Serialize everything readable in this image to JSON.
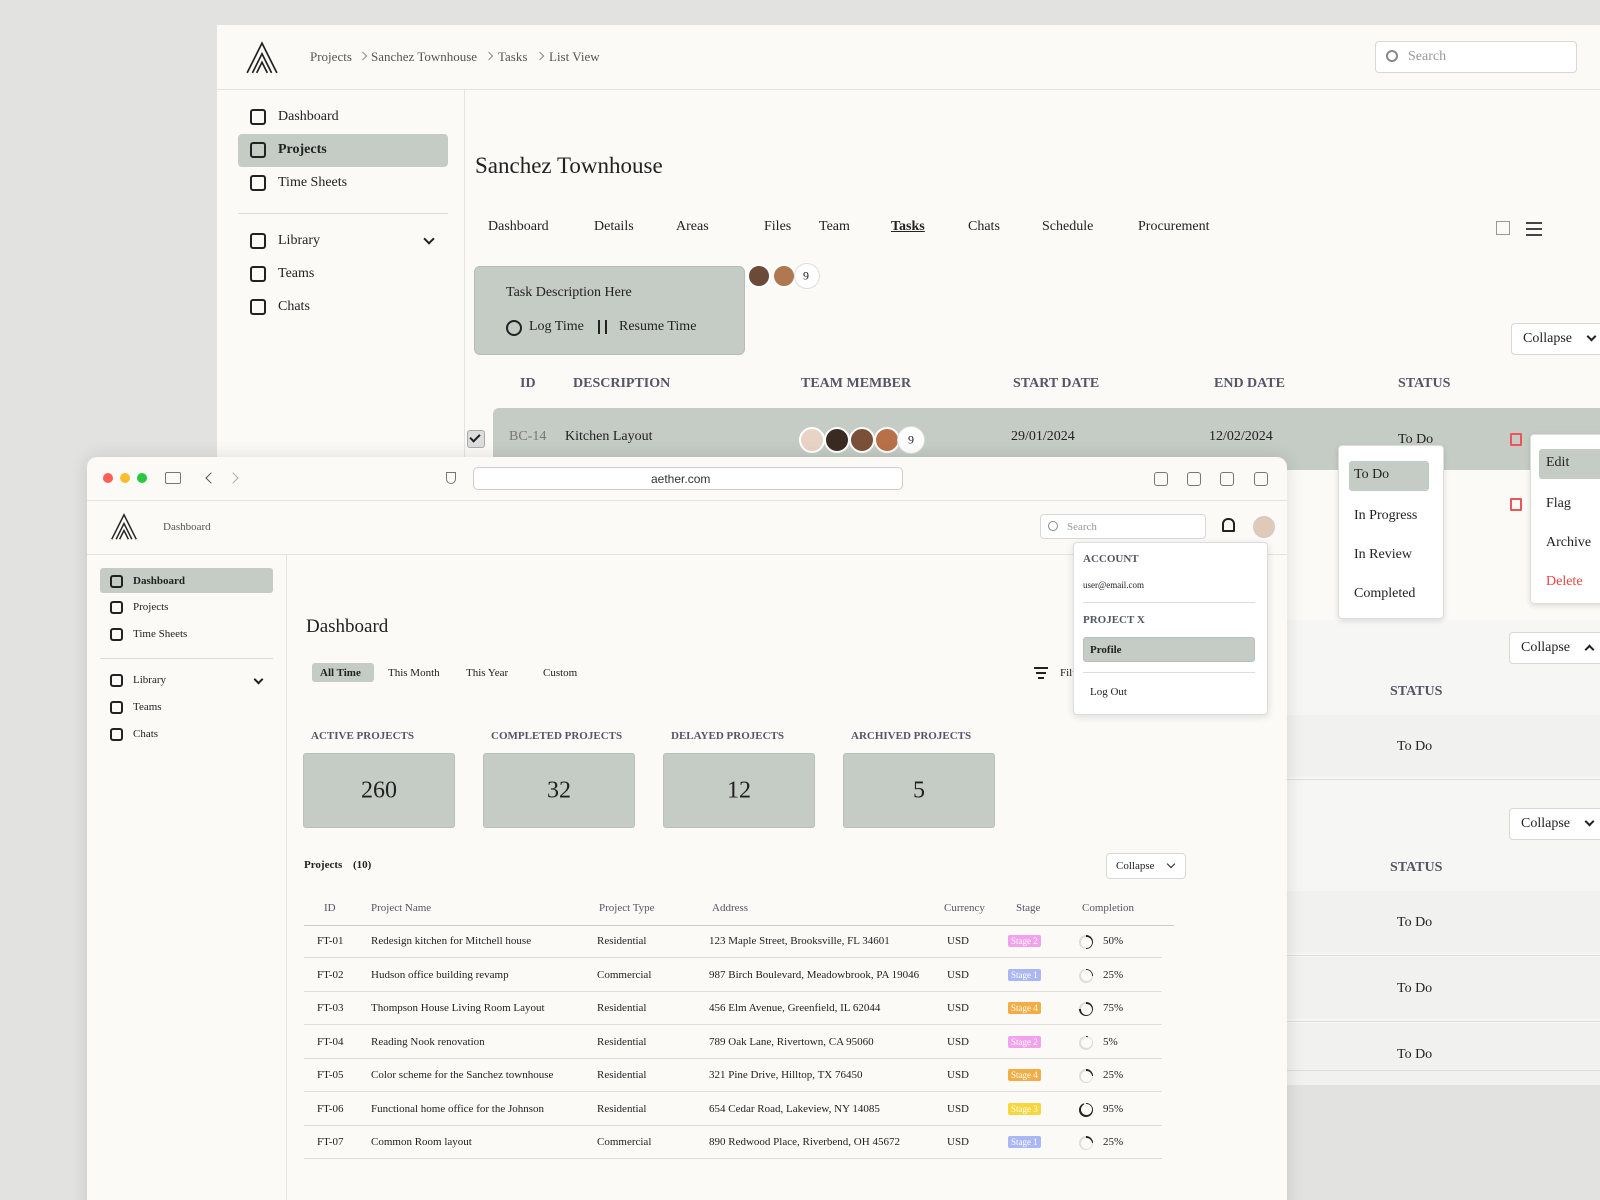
{
  "back_window": {
    "breadcrumbs": [
      "Projects",
      "Sanchez Townhouse",
      "Tasks",
      "List View"
    ],
    "search_placeholder": "Search",
    "nav": [
      "Dashboard",
      "Projects",
      "Time Sheets"
    ],
    "nav_secondary": [
      "Library",
      "Teams",
      "Chats"
    ],
    "title": "Sanchez Townhouse",
    "tabs": [
      "Dashboard",
      "Details",
      "Areas",
      "Files",
      "Team",
      "Tasks",
      "Chats",
      "Schedule",
      "Procurement"
    ],
    "task_popup": {
      "description": "Task Description Here",
      "log_time": "Log Time",
      "resume_time": "Resume Time"
    },
    "group_avatar_count": 9,
    "collapse_buttons": [
      "Collapse",
      "Collapse",
      "Collapse"
    ],
    "table_headers": [
      "ID",
      "DESCRIPTION",
      "TEAM MEMBER",
      "START DATE",
      "END DATE",
      "STATUS"
    ],
    "row": {
      "id": "BC-14",
      "description": "Kitchen Layout",
      "member_count": 9,
      "start_date": "29/01/2024",
      "end_date": "12/02/2024",
      "status": "To Do"
    },
    "status_menu": [
      "To Do",
      "In Progress",
      "In Review",
      "Completed"
    ],
    "action_menu": [
      "Edit",
      "Flag",
      "Archive",
      "Delete"
    ],
    "status_headers": [
      "STATUS",
      "STATUS"
    ],
    "other_rows_status": [
      "To Do",
      "To Do",
      "To Do",
      "To Do"
    ]
  },
  "front_window": {
    "url": "aether.com",
    "breadcrumb": "Dashboard",
    "search_placeholder": "Search",
    "nav": [
      "Dashboard",
      "Projects",
      "Time Sheets"
    ],
    "nav_secondary": [
      "Library",
      "Teams",
      "Chats"
    ],
    "title": "Dashboard",
    "filters": [
      "All Time",
      "This Month",
      "This Year",
      "Custom"
    ],
    "filter_button": "Filter",
    "stats": [
      {
        "label": "ACTIVE PROJECTS",
        "value": 260
      },
      {
        "label": "COMPLETED PROJECTS",
        "value": 32
      },
      {
        "label": "DELAYED PROJECTS",
        "value": 12
      },
      {
        "label": "ARCHIVED PROJECTS",
        "value": 5
      }
    ],
    "projects_heading": "Projects",
    "projects_count": "(10)",
    "collapse": "Collapse",
    "table": {
      "headers": [
        "ID",
        "Project Name",
        "Project Type",
        "Address",
        "Currency",
        "Stage",
        "Completion"
      ],
      "rows": [
        [
          "FT-01",
          "Redesign kitchen for Mitchell house",
          "Residential",
          "123 Maple Street, Brooksville, FL 34601",
          "USD",
          "Stage 2",
          "50%"
        ],
        [
          "FT-02",
          "Hudson office building revamp",
          "Commercial",
          "987 Birch Boulevard, Meadowbrook, PA 19046",
          "USD",
          "Stage 1",
          "25%"
        ],
        [
          "FT-03",
          "Thompson House Living Room Layout",
          "Residential",
          "456 Elm Avenue, Greenfield, IL 62044",
          "USD",
          "Stage 4",
          "75%"
        ],
        [
          "FT-04",
          "Reading Nook renovation",
          "Residential",
          "789 Oak Lane, Rivertown, CA 95060",
          "USD",
          "Stage 2",
          "5%"
        ],
        [
          "FT-05",
          "Color scheme for the Sanchez townhouse",
          "Residential",
          "321 Pine Drive, Hilltop, TX 76450",
          "USD",
          "Stage 4",
          "25%"
        ],
        [
          "FT-06",
          "Functional home office for the Johnson",
          "Residential",
          "654 Cedar Road, Lakeview, NY 14085",
          "USD",
          "Stage 3",
          "95%"
        ],
        [
          "FT-07",
          "Common Room layout",
          "Commercial",
          "890 Redwood Place, Riverbend, OH 45672",
          "USD",
          "Stage 1",
          "25%"
        ]
      ]
    },
    "stage_colors": {
      "Stage 1": "#a9b7f3",
      "Stage 2": "#f2a2ec",
      "Stage 3": "#f6d63c",
      "Stage 4": "#f2ae45"
    },
    "account_menu": {
      "account_heading": "ACCOUNT",
      "email": "user@email.com",
      "project_heading": "PROJECT X",
      "profile": "Profile",
      "logout": "Log Out"
    }
  }
}
